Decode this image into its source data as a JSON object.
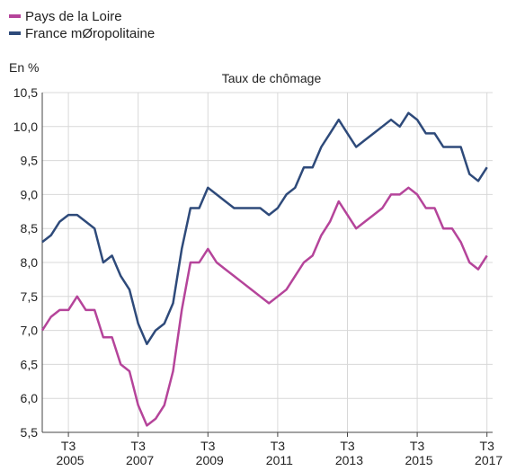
{
  "chart_data": {
    "type": "line",
    "title": "Taux de chômage",
    "y_label": "En %",
    "categories": [
      null,
      null,
      null,
      "T3 2005",
      null,
      null,
      null,
      null,
      null,
      null,
      null,
      "T3 2007",
      null,
      null,
      null,
      null,
      null,
      null,
      null,
      "T3 2009",
      null,
      null,
      null,
      null,
      null,
      null,
      null,
      "T3 2011",
      null,
      null,
      null,
      null,
      null,
      null,
      null,
      "T3 2013",
      null,
      null,
      null,
      null,
      null,
      null,
      null,
      "T3 2015",
      null,
      null,
      null,
      null,
      null,
      null,
      null,
      "T3 2017"
    ],
    "series": [
      {
        "name": "Pays de la Loire",
        "color": "#b5449a",
        "values": [
          7.0,
          7.2,
          7.3,
          7.3,
          7.5,
          7.3,
          7.3,
          6.9,
          6.9,
          6.5,
          6.4,
          5.9,
          5.6,
          5.7,
          5.9,
          6.4,
          7.3,
          8.0,
          8.0,
          8.2,
          8.0,
          7.9,
          7.8,
          7.7,
          7.6,
          7.5,
          7.4,
          7.5,
          7.6,
          7.8,
          8.0,
          8.1,
          8.4,
          8.6,
          8.9,
          8.7,
          8.5,
          8.6,
          8.7,
          8.8,
          9.0,
          9.0,
          9.1,
          9.0,
          8.8,
          8.8,
          8.5,
          8.5,
          8.3,
          8.0,
          7.9,
          8.1
        ]
      },
      {
        "name": "France mØropolitaine",
        "color": "#2e4a7a",
        "values": [
          8.3,
          8.4,
          8.6,
          8.7,
          8.7,
          8.6,
          8.5,
          8.0,
          8.1,
          7.8,
          7.6,
          7.1,
          6.8,
          7.0,
          7.1,
          7.4,
          8.2,
          8.8,
          8.8,
          9.1,
          9.0,
          8.9,
          8.8,
          8.8,
          8.8,
          8.8,
          8.7,
          8.8,
          9.0,
          9.1,
          9.4,
          9.4,
          9.7,
          9.9,
          10.1,
          9.9,
          9.7,
          9.8,
          9.9,
          10.0,
          10.1,
          10.0,
          10.2,
          10.1,
          9.9,
          9.9,
          9.7,
          9.7,
          9.7,
          9.3,
          9.2,
          9.4
        ]
      }
    ],
    "ylim": [
      5.5,
      10.5
    ],
    "yticks": [
      {
        "value": 5.5,
        "label": "5,5"
      },
      {
        "value": 6,
        "label": "6,0"
      },
      {
        "value": 6.5,
        "label": "6,5"
      },
      {
        "value": 7,
        "label": "7,0"
      },
      {
        "value": 7.5,
        "label": "7,5"
      },
      {
        "value": 8,
        "label": "8,0"
      },
      {
        "value": 8.5,
        "label": "8,5"
      },
      {
        "value": 9,
        "label": "9,0"
      },
      {
        "value": 9.5,
        "label": "9,5"
      },
      {
        "value": 10,
        "label": "10,0"
      },
      {
        "value": 10.5,
        "label": "10,5"
      }
    ],
    "grid": true,
    "legend": "top-left"
  }
}
